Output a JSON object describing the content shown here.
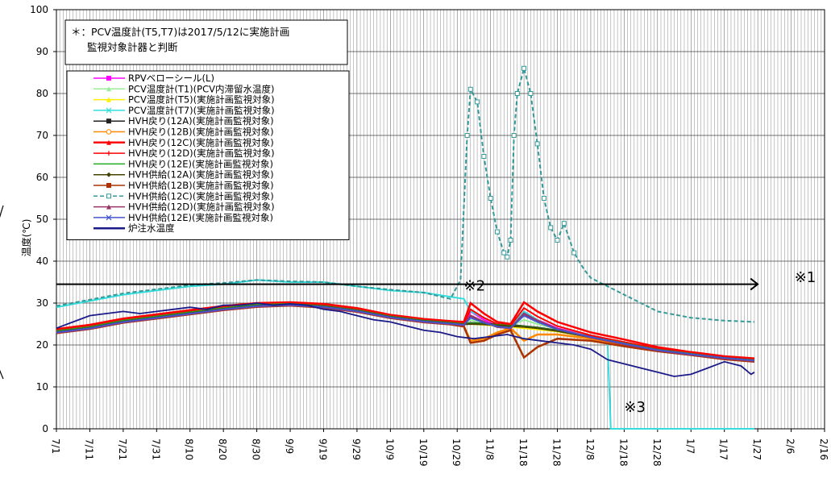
{
  "chart_data": {
    "type": "line",
    "ylabel": "温度(℃)",
    "ylim": [
      0,
      100
    ],
    "y_ticks": [
      0,
      10,
      20,
      30,
      40,
      50,
      60,
      70,
      80,
      90,
      100
    ],
    "x_tick_labels": [
      "7/1",
      "7/11",
      "7/21",
      "7/31",
      "8/10",
      "8/20",
      "8/30",
      "9/9",
      "9/19",
      "9/29",
      "10/9",
      "10/19",
      "10/29",
      "11/8",
      "11/18",
      "11/28",
      "12/8",
      "12/18",
      "12/28",
      "1/7",
      "1/17",
      "1/27",
      "2/6",
      "2/16"
    ],
    "xlim_days": [
      0,
      230
    ],
    "note_lines": [
      "＊：PCV温度計(T5,T7)は2017/5/12に実施計画",
      "監視対象計器と判断"
    ],
    "annotations": [
      {
        "text": "※1",
        "x_day": 221,
        "y": 35
      },
      {
        "text": "※2",
        "x_day": 122,
        "y": 33
      },
      {
        "text": "※3",
        "x_day": 170,
        "y": 4
      }
    ],
    "reference_line": {
      "y": 34.5,
      "x_start": 0,
      "x_end": 210
    },
    "series": [
      {
        "name": "RPVベローシール(L)",
        "color": "#ff00ff",
        "marker": "square",
        "x": [
          0,
          10,
          20,
          30,
          40,
          50,
          60,
          70,
          80,
          90,
          100,
          110,
          118,
          122,
          124,
          128,
          132,
          136,
          140,
          144,
          150,
          160,
          170,
          180,
          190,
          200,
          209
        ],
        "y": [
          23,
          24,
          25.5,
          26.5,
          27.5,
          28.5,
          29.5,
          30,
          29.8,
          28.5,
          27,
          26,
          25.5,
          24.5,
          28,
          26,
          24.5,
          24,
          28,
          26,
          24,
          22,
          20.5,
          19,
          18,
          17,
          16.5
        ]
      },
      {
        "name": "PCV温度計(T1)(PCV内滞留水温度)",
        "color": "#99ee99",
        "marker": "triangle",
        "x": [
          0,
          10,
          20,
          30,
          40,
          50,
          60,
          70,
          80,
          90,
          100,
          110,
          118,
          122,
          124,
          128,
          132,
          136,
          140,
          144,
          150,
          160,
          170,
          180,
          190,
          200,
          209
        ],
        "y": [
          23.5,
          24.5,
          26,
          27,
          28,
          29,
          29.8,
          30,
          29.5,
          28.5,
          27,
          26,
          25.5,
          25,
          26,
          25,
          24.5,
          24.5,
          26,
          25,
          23.8,
          22,
          20.5,
          19,
          18,
          17,
          16.5
        ]
      },
      {
        "name": "PCV温度計(T5)(実施計画監視対象)",
        "color": "#ffee00",
        "marker": "triangle",
        "x": [
          0,
          10,
          20,
          30,
          40,
          50,
          60,
          70,
          80,
          90,
          100,
          110,
          118,
          122,
          124,
          128,
          132,
          136,
          140,
          144,
          150,
          160,
          170,
          180,
          190,
          200,
          209
        ],
        "y": [
          23.2,
          24.2,
          25.8,
          26.8,
          27.8,
          28.8,
          29.6,
          30,
          29.5,
          28.4,
          26.8,
          25.8,
          25.2,
          25,
          25,
          24.8,
          24.5,
          24.3,
          24,
          23.7,
          23.2,
          21.8,
          20.3,
          18.9,
          17.9,
          17,
          16.4
        ]
      },
      {
        "name": "PCV温度計(T7)(実施計画監視対象)",
        "color": "#33dddd",
        "marker": "x",
        "x": [
          0,
          10,
          20,
          30,
          40,
          50,
          60,
          70,
          80,
          90,
          100,
          110,
          118,
          122,
          124,
          128,
          132,
          136,
          140,
          144,
          150,
          160,
          165,
          166,
          170,
          180,
          190,
          200,
          209
        ],
        "y": [
          29,
          30.5,
          32,
          33,
          34,
          34.5,
          35.5,
          35,
          35,
          34,
          33,
          32.5,
          31.5,
          31,
          28,
          26.5,
          25,
          24.5,
          28,
          26,
          23.5,
          22,
          21,
          0,
          0,
          0,
          0,
          0,
          0
        ]
      },
      {
        "name": "HVH戻り(12A)(実施計画監視対象)",
        "color": "#222222",
        "marker": "square",
        "x": [
          0,
          10,
          20,
          30,
          40,
          50,
          60,
          70,
          80,
          90,
          100,
          110,
          118,
          122,
          124,
          128,
          132,
          136,
          140,
          144,
          150,
          160,
          170,
          180,
          190,
          200,
          209
        ],
        "y": [
          23.5,
          24.5,
          26,
          27,
          28,
          29,
          29.8,
          30,
          29.5,
          28.5,
          27,
          26,
          25.5,
          25,
          25.3,
          25.1,
          25,
          24.8,
          24.5,
          24.2,
          23.5,
          22,
          20.5,
          19,
          18,
          17,
          16.5
        ]
      },
      {
        "name": "HVH戻り(12B)(実施計画監視対象)",
        "color": "#ff8800",
        "marker": "circle",
        "x": [
          0,
          10,
          20,
          30,
          40,
          50,
          60,
          70,
          80,
          90,
          100,
          110,
          118,
          122,
          124,
          128,
          132,
          136,
          140,
          144,
          150,
          160,
          170,
          180,
          190,
          200,
          209
        ],
        "y": [
          23,
          24,
          25.5,
          26.5,
          27.5,
          28.5,
          29.3,
          29.6,
          29,
          28,
          26.5,
          25.5,
          25,
          24.5,
          21,
          21.5,
          23,
          24,
          21,
          22.5,
          22.5,
          21.5,
          20,
          18.8,
          17.8,
          16.8,
          16.2
        ]
      },
      {
        "name": "HVH戻り(12C)(実施計画監視対象)",
        "color": "#ff0000",
        "marker": "triangle",
        "x": [
          0,
          10,
          20,
          30,
          40,
          50,
          60,
          70,
          80,
          90,
          100,
          110,
          118,
          122,
          124,
          128,
          132,
          136,
          140,
          144,
          150,
          160,
          170,
          180,
          190,
          200,
          209
        ],
        "y": [
          23.8,
          24.8,
          26.3,
          27.3,
          28.3,
          29.3,
          30,
          30.2,
          29.8,
          28.8,
          27.2,
          26.2,
          25.7,
          25.5,
          30,
          27.5,
          25.5,
          25,
          30.2,
          28,
          25.5,
          23,
          21.3,
          19.5,
          18.3,
          17.3,
          16.8
        ]
      },
      {
        "name": "HVH戻り(12D)(実施計画監視対象)",
        "color": "#ff0000",
        "marker": "plus",
        "x": [
          0,
          10,
          20,
          30,
          40,
          50,
          60,
          70,
          80,
          90,
          100,
          110,
          118,
          122,
          124,
          128,
          132,
          136,
          140,
          144,
          150,
          160,
          170,
          180,
          190,
          200,
          209
        ],
        "y": [
          23.4,
          24.4,
          25.9,
          26.9,
          27.9,
          28.9,
          29.7,
          29.9,
          29.4,
          28.4,
          26.9,
          25.9,
          25.4,
          25.1,
          28.5,
          26.5,
          25,
          24.6,
          28.8,
          26.8,
          24.5,
          22.3,
          20.7,
          19.2,
          18.1,
          17.1,
          16.6
        ]
      },
      {
        "name": "HVH戻り(12E)(実施計画監視対象)",
        "color": "#22aa22",
        "marker": "none",
        "x": [
          0,
          10,
          20,
          30,
          40,
          50,
          60,
          70,
          80,
          90,
          100,
          110,
          118,
          122,
          124,
          128,
          132,
          136,
          140,
          144,
          150,
          160,
          170,
          180,
          190,
          200,
          209
        ],
        "y": [
          23.3,
          24.3,
          25.8,
          26.8,
          27.8,
          28.8,
          29.6,
          29.8,
          29.3,
          28.3,
          26.8,
          25.8,
          25.3,
          25,
          25.2,
          25,
          24.8,
          24.6,
          24.4,
          24.1,
          23.4,
          21.9,
          20.4,
          18.9,
          17.9,
          16.9,
          16.4
        ]
      },
      {
        "name": "HVH供給(12A)(実施計画監視対象)",
        "color": "#444400",
        "marker": "diamond",
        "x": [
          0,
          10,
          20,
          30,
          40,
          50,
          60,
          70,
          80,
          90,
          100,
          110,
          118,
          122,
          124,
          128,
          132,
          136,
          140,
          144,
          150,
          160,
          170,
          180,
          190,
          200,
          209
        ],
        "y": [
          23.1,
          24.1,
          25.6,
          26.6,
          27.6,
          28.6,
          29.4,
          29.7,
          29.2,
          28.2,
          26.7,
          25.7,
          25.2,
          24.9,
          25,
          24.9,
          24.7,
          24.5,
          24.3,
          24,
          23.3,
          21.8,
          20.3,
          18.8,
          17.8,
          16.9,
          16.3
        ]
      },
      {
        "name": "HVH供給(12B)(実施計画監視対象)",
        "color": "#aa3300",
        "marker": "square",
        "x": [
          0,
          10,
          20,
          30,
          40,
          50,
          60,
          70,
          80,
          90,
          100,
          110,
          118,
          122,
          124,
          128,
          132,
          136,
          140,
          144,
          150,
          160,
          170,
          180,
          190,
          200,
          209
        ],
        "y": [
          22.8,
          23.8,
          25.3,
          26.3,
          27.3,
          28.3,
          29.1,
          29.4,
          28.9,
          27.9,
          26.4,
          25.4,
          24.9,
          24.4,
          20.5,
          21,
          22.5,
          23.5,
          17,
          19.5,
          21.5,
          21,
          19.7,
          18.5,
          17.6,
          16.6,
          16
        ]
      },
      {
        "name": "HVH供給(12C)(実施計画監視対象)",
        "color": "#339999",
        "marker": "square-open",
        "x": [
          0,
          10,
          20,
          30,
          40,
          50,
          60,
          70,
          80,
          90,
          100,
          110,
          118,
          121,
          123,
          124,
          126,
          128,
          130,
          132,
          134,
          135,
          136,
          137,
          138,
          140,
          142,
          144,
          146,
          148,
          150,
          152,
          155,
          158,
          160,
          165,
          170,
          175,
          180,
          190,
          200,
          209
        ],
        "y": [
          29.3,
          30.8,
          32.3,
          33.3,
          34.3,
          34.8,
          35.5,
          35.2,
          35,
          34,
          33.2,
          32.5,
          31,
          35.5,
          70,
          81,
          78,
          65,
          55,
          47,
          42,
          41,
          45,
          70,
          80,
          86,
          80,
          68,
          55,
          48,
          45,
          49,
          42,
          38,
          36,
          34,
          32,
          30,
          28,
          26.5,
          25.8,
          25.5
        ]
      },
      {
        "name": "HVH供給(12D)(実施計画監視対象)",
        "color": "#993366",
        "marker": "triangle",
        "x": [
          0,
          10,
          20,
          30,
          40,
          50,
          60,
          70,
          80,
          90,
          100,
          110,
          118,
          122,
          124,
          128,
          132,
          136,
          140,
          144,
          150,
          160,
          170,
          180,
          190,
          200,
          209
        ],
        "y": [
          22.9,
          23.9,
          25.4,
          26.4,
          27.4,
          28.4,
          29.2,
          29.5,
          29,
          28,
          26.5,
          25.5,
          25,
          24.7,
          27,
          25.5,
          24.3,
          24,
          27.5,
          25.8,
          23.8,
          21.8,
          20.2,
          18.7,
          17.7,
          16.8,
          16.2
        ]
      },
      {
        "name": "HVH供給(12E)(実施計画監視対象)",
        "color": "#4455cc",
        "marker": "x",
        "x": [
          0,
          10,
          20,
          30,
          40,
          50,
          60,
          70,
          80,
          90,
          100,
          110,
          118,
          122,
          124,
          128,
          132,
          136,
          140,
          144,
          150,
          160,
          170,
          180,
          190,
          200,
          209
        ],
        "y": [
          23,
          24,
          25.5,
          26.5,
          27.5,
          28.5,
          29.3,
          29.6,
          29.1,
          28.1,
          26.6,
          25.6,
          25.1,
          24.8,
          26.5,
          25.3,
          24.4,
          24.1,
          27,
          25.5,
          23.7,
          21.9,
          20.3,
          18.8,
          17.8,
          16.9,
          16.3
        ]
      },
      {
        "name": "炉注水温度",
        "color": "#1a1a88",
        "marker": "none",
        "x": [
          0,
          5,
          10,
          15,
          20,
          25,
          30,
          35,
          40,
          45,
          50,
          55,
          60,
          65,
          70,
          75,
          80,
          85,
          90,
          95,
          100,
          105,
          110,
          115,
          120,
          125,
          130,
          135,
          140,
          145,
          150,
          155,
          160,
          165,
          170,
          175,
          180,
          185,
          190,
          195,
          200,
          205,
          208,
          209
        ],
        "y": [
          24,
          25.5,
          27,
          27.5,
          28,
          27.5,
          28,
          28.5,
          29,
          28.5,
          29.5,
          29.5,
          30,
          29.5,
          29.8,
          29.5,
          28.5,
          28,
          27,
          26,
          25.5,
          24.5,
          23.5,
          23,
          22,
          21.5,
          22,
          22.5,
          21.5,
          21,
          20.5,
          20,
          19,
          16.5,
          15.5,
          14.5,
          13.5,
          12.5,
          13,
          14.5,
          16,
          15,
          13,
          13.5
        ]
      }
    ]
  }
}
